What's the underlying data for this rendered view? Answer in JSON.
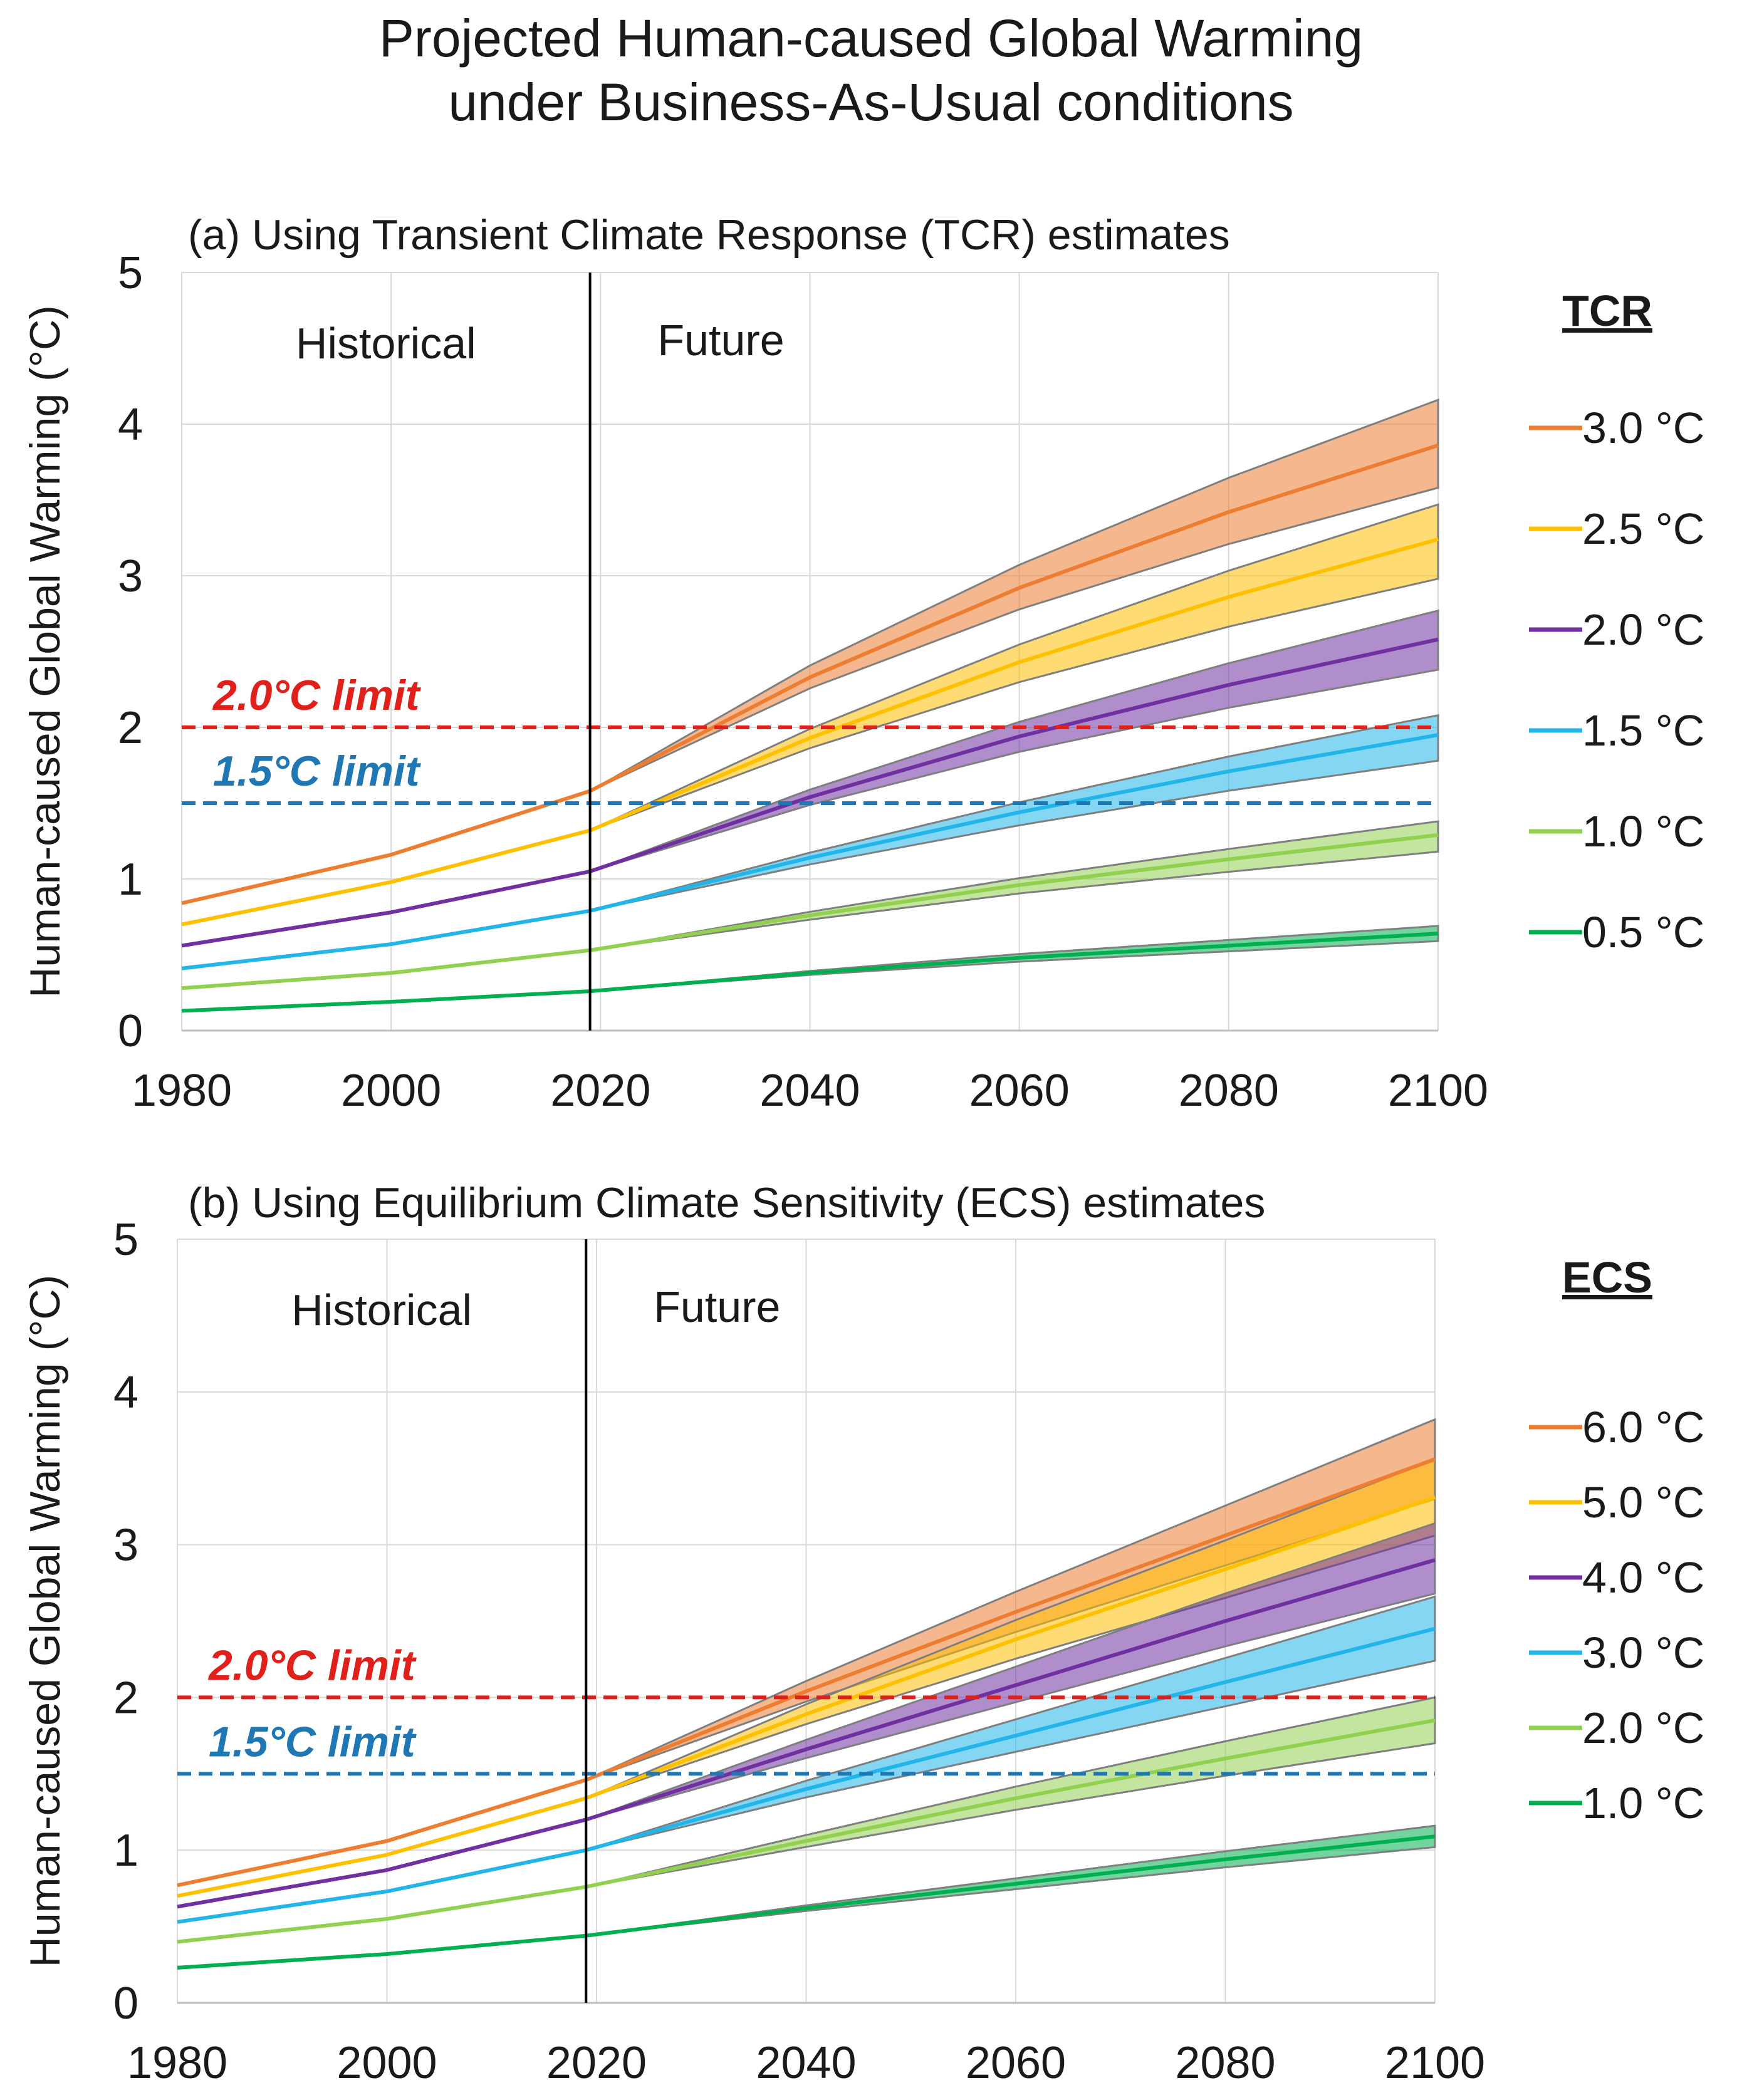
{
  "figure": {
    "title_line1": "Projected Human-caused Global Warming",
    "title_line2": "under Business-As-Usual conditions"
  },
  "chart_data": [
    {
      "type": "line",
      "id": "tcr",
      "title": "(a) Using Transient Climate Response (TCR) estimates",
      "xlabel": "",
      "ylabel": "Human-caused Global Warming (°C)",
      "xlim": [
        1980,
        2100
      ],
      "ylim": [
        0,
        5
      ],
      "xticks": [
        1980,
        2000,
        2020,
        2040,
        2060,
        2080,
        2100
      ],
      "yticks": [
        0,
        1,
        2,
        3,
        4,
        5
      ],
      "grid": true,
      "divider_year": 2019,
      "region_labels": [
        "Historical",
        "Future"
      ],
      "legend_title": "TCR",
      "legend_position": "right",
      "thresholds": [
        {
          "label": "2.0°C limit",
          "value": 2.0,
          "color": "#e0201b"
        },
        {
          "label": "1.5°C limit",
          "value": 1.5,
          "color": "#1f77b4"
        }
      ],
      "series": [
        {
          "name": "3.0 °C",
          "color": "#ed7d31",
          "points": [
            [
              1980,
              0.84
            ],
            [
              2000,
              1.16
            ],
            [
              2019,
              1.58
            ],
            [
              2040,
              2.33
            ],
            [
              2060,
              2.92
            ],
            [
              2080,
              3.42
            ],
            [
              2100,
              3.86
            ]
          ],
          "band_upper_2100": 4.16,
          "band_lower_2100": 3.58
        },
        {
          "name": "2.5 °C",
          "color": "#ffc000",
          "points": [
            [
              1980,
              0.7
            ],
            [
              2000,
              0.98
            ],
            [
              2019,
              1.32
            ],
            [
              2040,
              1.93
            ],
            [
              2060,
              2.43
            ],
            [
              2080,
              2.86
            ],
            [
              2100,
              3.24
            ]
          ],
          "band_upper_2100": 3.47,
          "band_lower_2100": 2.98
        },
        {
          "name": "2.0 °C",
          "color": "#7030a0",
          "points": [
            [
              1980,
              0.56
            ],
            [
              2000,
              0.78
            ],
            [
              2019,
              1.05
            ],
            [
              2040,
              1.54
            ],
            [
              2060,
              1.94
            ],
            [
              2080,
              2.28
            ],
            [
              2100,
              2.58
            ]
          ],
          "band_upper_2100": 2.77,
          "band_lower_2100": 2.38
        },
        {
          "name": "1.5 °C",
          "color": "#21b5ea",
          "points": [
            [
              1980,
              0.41
            ],
            [
              2000,
              0.57
            ],
            [
              2019,
              0.79
            ],
            [
              2040,
              1.14
            ],
            [
              2060,
              1.44
            ],
            [
              2080,
              1.71
            ],
            [
              2100,
              1.95
            ]
          ],
          "band_upper_2100": 2.08,
          "band_lower_2100": 1.78
        },
        {
          "name": "1.0 °C",
          "color": "#92d050",
          "points": [
            [
              1980,
              0.28
            ],
            [
              2000,
              0.38
            ],
            [
              2019,
              0.53
            ],
            [
              2040,
              0.76
            ],
            [
              2060,
              0.96
            ],
            [
              2080,
              1.13
            ],
            [
              2100,
              1.29
            ]
          ],
          "band_upper_2100": 1.38,
          "band_lower_2100": 1.18
        },
        {
          "name": "0.5 °C",
          "color": "#00b050",
          "points": [
            [
              1980,
              0.13
            ],
            [
              2000,
              0.19
            ],
            [
              2019,
              0.26
            ],
            [
              2040,
              0.38
            ],
            [
              2060,
              0.48
            ],
            [
              2080,
              0.56
            ],
            [
              2100,
              0.64
            ]
          ],
          "band_upper_2100": 0.69,
          "band_lower_2100": 0.59
        }
      ]
    },
    {
      "type": "line",
      "id": "ecs",
      "title": "(b) Using Equilibrium Climate Sensitivity (ECS) estimates",
      "xlabel": "",
      "ylabel": "Human-caused Global Warming (°C)",
      "xlim": [
        1980,
        2100
      ],
      "ylim": [
        0,
        5
      ],
      "xticks": [
        1980,
        2000,
        2020,
        2040,
        2060,
        2080,
        2100
      ],
      "yticks": [
        0,
        1,
        2,
        3,
        4,
        5
      ],
      "grid": true,
      "divider_year": 2019,
      "region_labels": [
        "Historical",
        "Future"
      ],
      "legend_title": "ECS",
      "legend_position": "right",
      "thresholds": [
        {
          "label": "2.0°C limit",
          "value": 2.0,
          "color": "#e0201b"
        },
        {
          "label": "1.5°C limit",
          "value": 1.5,
          "color": "#1f77b4"
        }
      ],
      "series": [
        {
          "name": "6.0 °C",
          "color": "#ed7d31",
          "points": [
            [
              1980,
              0.77
            ],
            [
              2000,
              1.06
            ],
            [
              2019,
              1.46
            ],
            [
              2040,
              2.04
            ],
            [
              2060,
              2.56
            ],
            [
              2080,
              3.06
            ],
            [
              2100,
              3.56
            ]
          ],
          "band_upper_2100": 3.82,
          "band_lower_2100": 3.3
        },
        {
          "name": "5.0 °C",
          "color": "#ffc000",
          "points": [
            [
              1980,
              0.7
            ],
            [
              2000,
              0.97
            ],
            [
              2019,
              1.34
            ],
            [
              2040,
              1.89
            ],
            [
              2060,
              2.38
            ],
            [
              2080,
              2.84
            ],
            [
              2100,
              3.31
            ]
          ],
          "band_upper_2100": 3.56,
          "band_lower_2100": 3.06
        },
        {
          "name": "4.0 °C",
          "color": "#7030a0",
          "points": [
            [
              1980,
              0.63
            ],
            [
              2000,
              0.87
            ],
            [
              2019,
              1.2
            ],
            [
              2040,
              1.66
            ],
            [
              2060,
              2.08
            ],
            [
              2080,
              2.5
            ],
            [
              2100,
              2.9
            ]
          ],
          "band_upper_2100": 3.14,
          "band_lower_2100": 2.68
        },
        {
          "name": "3.0 °C",
          "color": "#21b5ea",
          "points": [
            [
              1980,
              0.53
            ],
            [
              2000,
              0.73
            ],
            [
              2019,
              1.0
            ],
            [
              2040,
              1.4
            ],
            [
              2060,
              1.75
            ],
            [
              2080,
              2.1
            ],
            [
              2100,
              2.45
            ]
          ],
          "band_upper_2100": 2.66,
          "band_lower_2100": 2.24
        },
        {
          "name": "2.0 °C",
          "color": "#92d050",
          "points": [
            [
              1980,
              0.4
            ],
            [
              2000,
              0.55
            ],
            [
              2019,
              0.76
            ],
            [
              2040,
              1.06
            ],
            [
              2060,
              1.34
            ],
            [
              2080,
              1.6
            ],
            [
              2100,
              1.85
            ]
          ],
          "band_upper_2100": 2.0,
          "band_lower_2100": 1.7
        },
        {
          "name": "1.0 °C",
          "color": "#00b050",
          "points": [
            [
              1980,
              0.23
            ],
            [
              2000,
              0.32
            ],
            [
              2019,
              0.44
            ],
            [
              2040,
              0.62
            ],
            [
              2060,
              0.78
            ],
            [
              2080,
              0.94
            ],
            [
              2100,
              1.09
            ]
          ],
          "band_upper_2100": 1.16,
          "band_lower_2100": 1.02
        }
      ]
    }
  ]
}
